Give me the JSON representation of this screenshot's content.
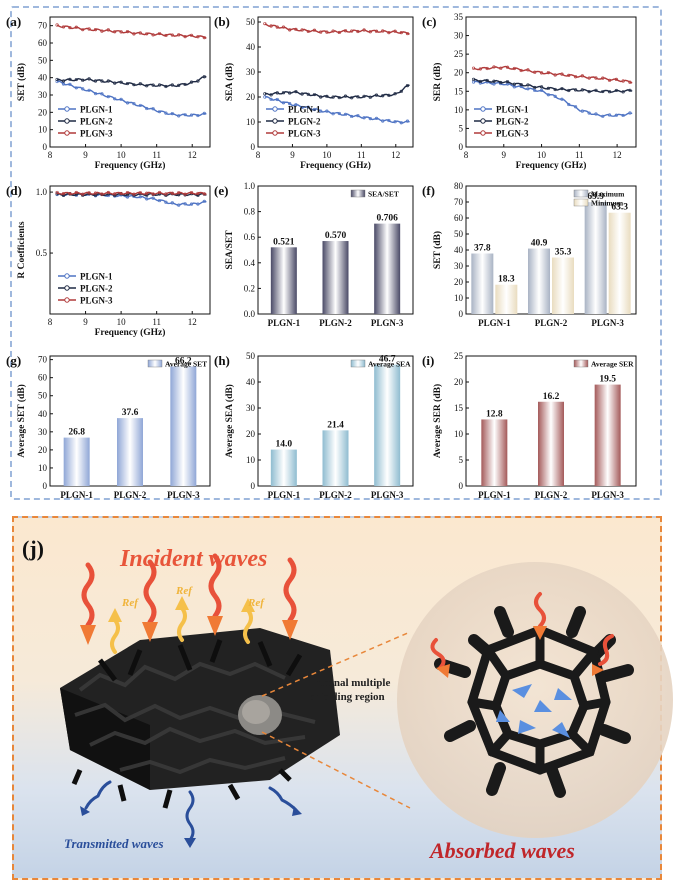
{
  "panels": [
    {
      "id": "a",
      "label": "(a)",
      "type": "line",
      "xlabel": "Frequency (GHz)",
      "ylabel": "SET (dB)",
      "xlim": [
        8,
        12.5
      ],
      "ylim": [
        0,
        75
      ],
      "xticks": [
        8,
        9,
        10,
        11,
        12
      ],
      "yticks": [
        0,
        10,
        20,
        30,
        40,
        50,
        60,
        70
      ],
      "legend": [
        "PLGN-1",
        "PLGN-2",
        "PLGN-3"
      ]
    },
    {
      "id": "b",
      "label": "(b)",
      "type": "line",
      "xlabel": "Frequency (GHz)",
      "ylabel": "SEA (dB)",
      "xlim": [
        8,
        12.5
      ],
      "ylim": [
        0,
        52
      ],
      "xticks": [
        8,
        9,
        10,
        11,
        12
      ],
      "yticks": [
        0,
        10,
        20,
        30,
        40,
        50
      ],
      "legend": [
        "PLGN-1",
        "PLGN-2",
        "PLGN-3"
      ]
    },
    {
      "id": "c",
      "label": "(c)",
      "type": "line",
      "xlabel": "Frequency (GHz)",
      "ylabel": "SER (dB)",
      "xlim": [
        8,
        12.5
      ],
      "ylim": [
        0,
        35
      ],
      "xticks": [
        8,
        9,
        10,
        11,
        12
      ],
      "yticks": [
        0,
        5,
        10,
        15,
        20,
        25,
        30,
        35
      ],
      "legend": [
        "PLGN-1",
        "PLGN-2",
        "PLGN-3"
      ]
    },
    {
      "id": "d",
      "label": "(d)",
      "type": "line",
      "xlabel": "Frequency (GHz)",
      "ylabel": "R Coefficients",
      "xlim": [
        8,
        12.5
      ],
      "ylim": [
        0,
        1.05
      ],
      "xticks": [
        8,
        9,
        10,
        11,
        12
      ],
      "yticks": [
        0.5,
        1.0
      ],
      "yticklabels": [
        "0.5",
        "1.0"
      ],
      "legend": [
        "PLGN-1",
        "PLGN-2",
        "PLGN-3"
      ]
    },
    {
      "id": "e",
      "label": "(e)",
      "type": "bar",
      "ylabel": "SEA/SET",
      "ylim": [
        0,
        1.0
      ],
      "yticks": [
        0,
        0.2,
        0.4,
        0.6,
        0.8,
        1.0
      ],
      "yticklabels": [
        "0.0",
        "0.2",
        "0.4",
        "0.6",
        "0.8",
        "1.0"
      ],
      "legend": [
        "SEA/SET"
      ]
    },
    {
      "id": "f",
      "label": "(f)",
      "type": "bar",
      "ylabel": "SET (dB)",
      "ylim": [
        0,
        80
      ],
      "yticks": [
        0,
        10,
        20,
        30,
        40,
        50,
        60,
        70,
        80
      ],
      "legend": [
        "Maximum",
        "Minimum"
      ]
    },
    {
      "id": "g",
      "label": "(g)",
      "type": "bar",
      "ylabel": "Average SET (dB)",
      "ylim": [
        0,
        72
      ],
      "yticks": [
        0,
        10,
        20,
        30,
        40,
        50,
        60,
        70
      ],
      "legend": [
        "Average SET"
      ]
    },
    {
      "id": "h",
      "label": "(h)",
      "type": "bar",
      "ylabel": "Average SEA (dB)",
      "ylim": [
        0,
        50
      ],
      "yticks": [
        0,
        10,
        20,
        30,
        40,
        50
      ],
      "legend": [
        "Average SEA"
      ]
    },
    {
      "id": "i",
      "label": "(i)",
      "type": "bar",
      "ylabel": "Average SER (dB)",
      "ylim": [
        0,
        25
      ],
      "yticks": [
        0,
        5,
        10,
        15,
        20,
        25
      ],
      "legend": [
        "Average SER"
      ]
    }
  ],
  "chart_data": [
    {
      "type": "line",
      "panel": "a",
      "title": "",
      "xlabel": "Frequency (GHz)",
      "ylabel": "SET (dB)",
      "xlim": [
        8,
        12.5
      ],
      "ylim": [
        0,
        75
      ],
      "series": [
        {
          "name": "PLGN-1",
          "x": [
            8.2,
            9,
            10,
            10.5,
            11,
            11.5,
            12,
            12.4
          ],
          "y": [
            37.8,
            33,
            27,
            24,
            21,
            18.5,
            18.3,
            19
          ]
        },
        {
          "name": "PLGN-2",
          "x": [
            8.2,
            9,
            10,
            10.5,
            11,
            11.5,
            12,
            12.4
          ],
          "y": [
            38.5,
            39,
            37,
            36,
            35.5,
            35.3,
            37,
            40.9
          ]
        },
        {
          "name": "PLGN-3",
          "x": [
            8.2,
            9,
            10,
            10.5,
            11,
            11.5,
            12,
            12.4
          ],
          "y": [
            69.9,
            68,
            66.5,
            65.5,
            65,
            64.5,
            64,
            63.3
          ]
        }
      ]
    },
    {
      "type": "line",
      "panel": "b",
      "title": "",
      "xlabel": "Frequency (GHz)",
      "ylabel": "SEA (dB)",
      "xlim": [
        8,
        12.5
      ],
      "ylim": [
        0,
        52
      ],
      "series": [
        {
          "name": "PLGN-1",
          "x": [
            8.2,
            9,
            10,
            11,
            12,
            12.4
          ],
          "y": [
            20,
            17,
            14,
            12,
            10,
            10
          ]
        },
        {
          "name": "PLGN-2",
          "x": [
            8.2,
            9,
            10,
            11,
            12,
            12.4
          ],
          "y": [
            21,
            22,
            20,
            20,
            21,
            25
          ]
        },
        {
          "name": "PLGN-3",
          "x": [
            8.2,
            9,
            10,
            11,
            12,
            12.4
          ],
          "y": [
            49,
            47,
            46,
            46.5,
            46,
            45.5
          ]
        }
      ]
    },
    {
      "type": "line",
      "panel": "c",
      "title": "",
      "xlabel": "Frequency (GHz)",
      "ylabel": "SER (dB)",
      "xlim": [
        8,
        12.5
      ],
      "ylim": [
        0,
        35
      ],
      "series": [
        {
          "name": "PLGN-1",
          "x": [
            8.2,
            9,
            10,
            10.5,
            11,
            11.5,
            12,
            12.4
          ],
          "y": [
            17.5,
            17,
            15,
            13,
            10,
            8.5,
            8.5,
            9
          ]
        },
        {
          "name": "PLGN-2",
          "x": [
            8.2,
            9,
            10,
            10.5,
            11,
            11.5,
            12,
            12.4
          ],
          "y": [
            18,
            17.5,
            16,
            15.5,
            15.3,
            15,
            15,
            15.2
          ]
        },
        {
          "name": "PLGN-3",
          "x": [
            8.2,
            9,
            10,
            10.5,
            11,
            11.5,
            12,
            12.4
          ],
          "y": [
            21,
            21.5,
            20,
            19.5,
            19,
            18.5,
            18,
            17.5
          ]
        }
      ]
    },
    {
      "type": "line",
      "panel": "d",
      "title": "",
      "xlabel": "Frequency (GHz)",
      "ylabel": "R Coefficients",
      "xlim": [
        8,
        12.5
      ],
      "ylim": [
        0,
        1.05
      ],
      "series": [
        {
          "name": "PLGN-1",
          "x": [
            8.2,
            9,
            10,
            10.5,
            11,
            11.5,
            12,
            12.4
          ],
          "y": [
            0.98,
            0.98,
            0.97,
            0.96,
            0.94,
            0.9,
            0.9,
            0.92
          ]
        },
        {
          "name": "PLGN-2",
          "x": [
            8.2,
            9,
            10,
            11,
            12,
            12.4
          ],
          "y": [
            0.98,
            0.98,
            0.98,
            0.98,
            0.98,
            0.98
          ]
        },
        {
          "name": "PLGN-3",
          "x": [
            8.2,
            9,
            10,
            11,
            12,
            12.4
          ],
          "y": [
            0.99,
            0.99,
            0.99,
            0.99,
            0.99,
            0.99
          ]
        }
      ]
    },
    {
      "type": "bar",
      "panel": "e",
      "title": "",
      "ylabel": "SEA/SET",
      "ylim": [
        0,
        1.0
      ],
      "categories": [
        "PLGN-1",
        "PLGN-2",
        "PLGN-3"
      ],
      "series": [
        {
          "name": "SEA/SET",
          "values": [
            0.521,
            0.57,
            0.706
          ],
          "labels": [
            "0.521",
            "0.570",
            "0.706"
          ]
        }
      ]
    },
    {
      "type": "bar",
      "panel": "f",
      "title": "",
      "ylabel": "SET (dB)",
      "ylim": [
        0,
        80
      ],
      "categories": [
        "PLGN-1",
        "PLGN-2",
        "PLGN-3"
      ],
      "series": [
        {
          "name": "Maximum",
          "values": [
            37.8,
            40.9,
            69.9
          ],
          "labels": [
            "37.8",
            "40.9",
            "69.9"
          ]
        },
        {
          "name": "Minimum",
          "values": [
            18.3,
            35.3,
            63.3
          ],
          "labels": [
            "18.3",
            "35.3",
            "63.3"
          ]
        }
      ]
    },
    {
      "type": "bar",
      "panel": "g",
      "title": "",
      "ylabel": "Average SET (dB)",
      "ylim": [
        0,
        72
      ],
      "categories": [
        "PLGN-1",
        "PLGN-2",
        "PLGN-3"
      ],
      "series": [
        {
          "name": "Average SET",
          "values": [
            26.8,
            37.6,
            66.2
          ],
          "labels": [
            "26.8",
            "37.6",
            "66.2"
          ]
        }
      ]
    },
    {
      "type": "bar",
      "panel": "h",
      "title": "",
      "ylabel": "Average SEA (dB)",
      "ylim": [
        0,
        50
      ],
      "categories": [
        "PLGN-1",
        "PLGN-2",
        "PLGN-3"
      ],
      "series": [
        {
          "name": "Average SEA",
          "values": [
            14.0,
            21.4,
            46.7
          ],
          "labels": [
            "14.0",
            "21.4",
            "46.7"
          ]
        }
      ]
    },
    {
      "type": "bar",
      "panel": "i",
      "title": "",
      "ylabel": "Average SER (dB)",
      "ylim": [
        0,
        25
      ],
      "categories": [
        "PLGN-1",
        "PLGN-2",
        "PLGN-3"
      ],
      "series": [
        {
          "name": "Average SER",
          "values": [
            12.8,
            16.2,
            19.5
          ],
          "labels": [
            "12.8",
            "16.2",
            "19.5"
          ]
        }
      ]
    }
  ],
  "colors": {
    "plgn1": "#4f74c4",
    "plgn2": "#1f2a44",
    "plgn3": "#b03a3a",
    "e": "#4a4a66",
    "f_max": "#a9b3c4",
    "f_min": "#e9dcbf",
    "g": "#8fa6d6",
    "h": "#8fbcd0",
    "i": "#a45a5a",
    "incident": "#e85a3a",
    "absorbed": "#c0262a",
    "transmitted": "#2a4e9a"
  },
  "illustration": {
    "label": "(j)",
    "incident": "Incident waves",
    "ref": "Ref",
    "region": "Internal multiple\nshielding region",
    "transmitted": "Transmitted waves",
    "absorbed": "Absorbed waves",
    "icons": [
      "wavy-arrow-icon",
      "foam-network-icon",
      "cage-structure-icon"
    ]
  }
}
